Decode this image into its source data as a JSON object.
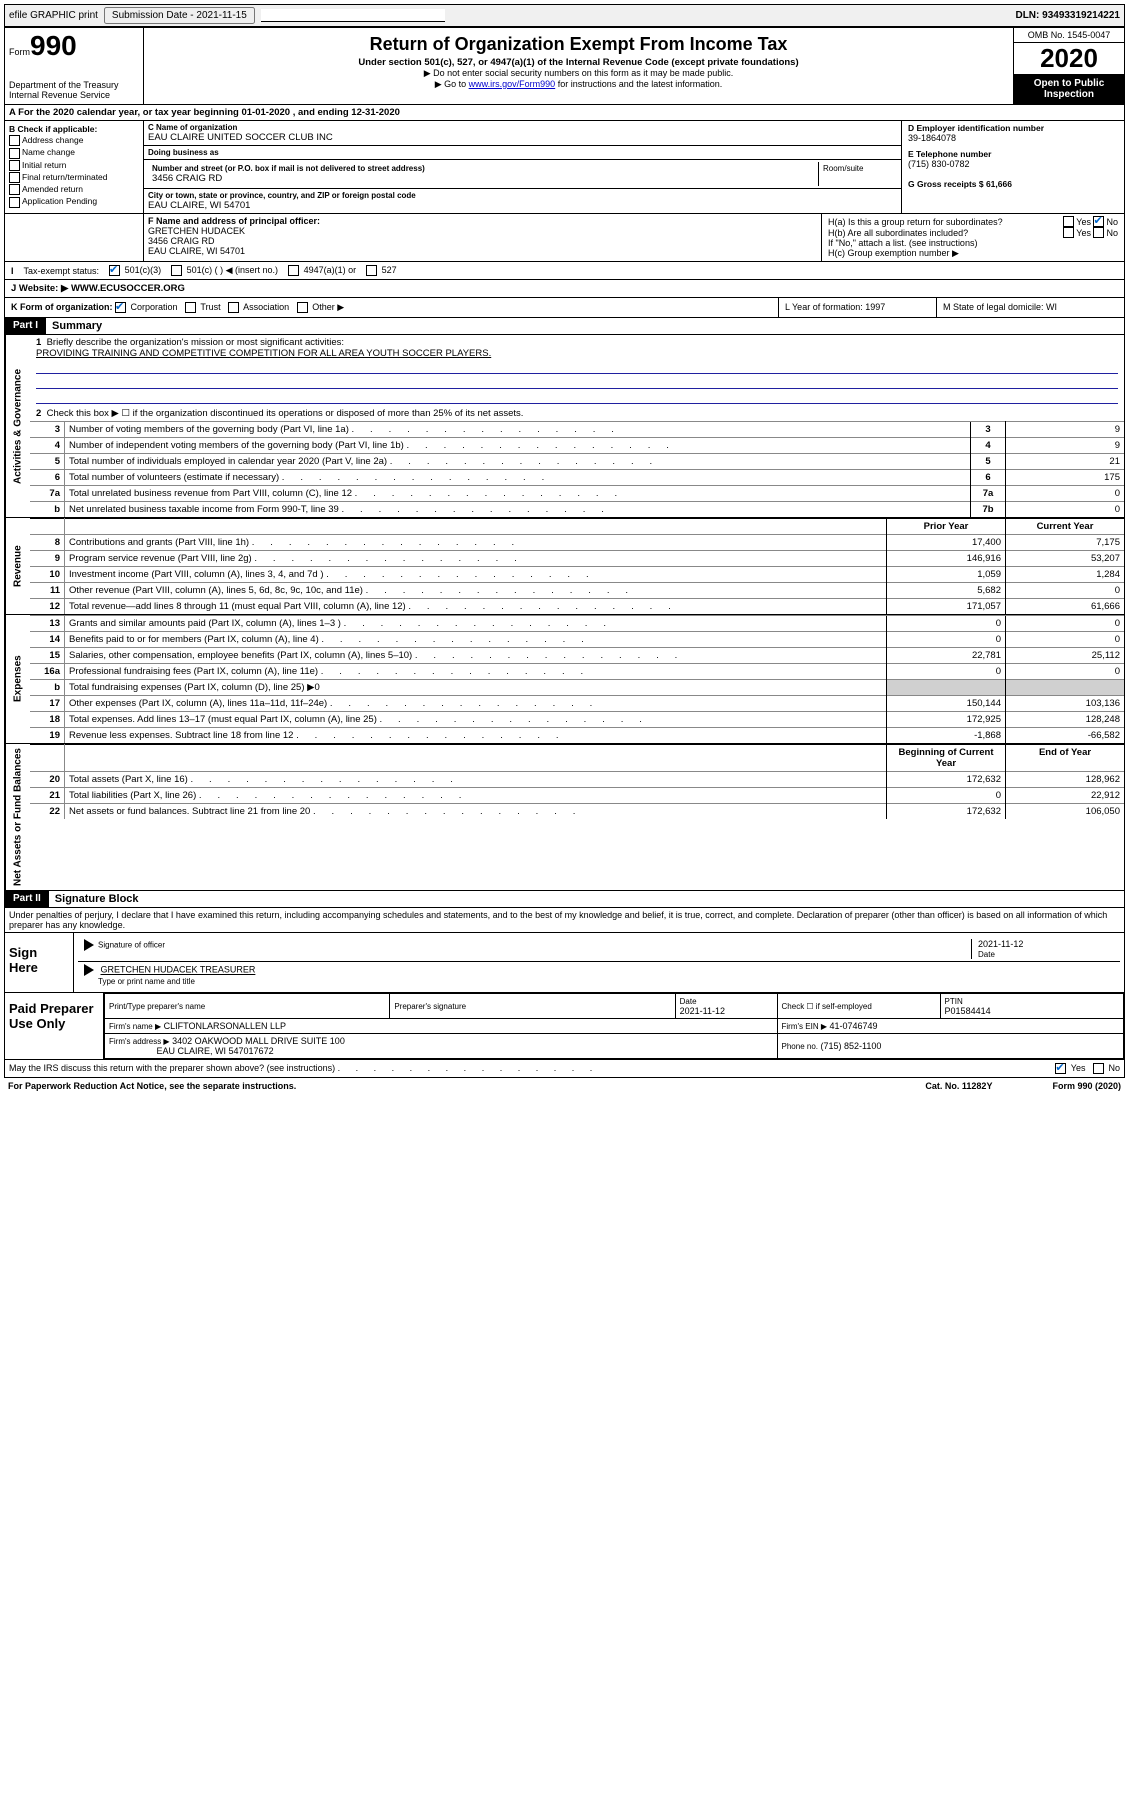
{
  "top": {
    "efile": "efile GRAPHIC print",
    "submission_label": "Submission Date - 2021-11-15",
    "dln": "DLN: 93493319214221"
  },
  "header": {
    "form_word": "Form",
    "form_num": "990",
    "dept1": "Department of the Treasury",
    "dept2": "Internal Revenue Service",
    "title": "Return of Organization Exempt From Income Tax",
    "sub": "Under section 501(c), 527, or 4947(a)(1) of the Internal Revenue Code (except private foundations)",
    "instr1": "▶ Do not enter social security numbers on this form as it may be made public.",
    "instr2_pre": "▶ Go to ",
    "instr2_link": "www.irs.gov/Form990",
    "instr2_post": " for instructions and the latest information.",
    "omb": "OMB No. 1545-0047",
    "year": "2020",
    "open": "Open to Public Inspection"
  },
  "rowA": "A   For the 2020 calendar year, or tax year beginning 01-01-2020   , and ending 12-31-2020",
  "colB": {
    "head": "B Check if applicable:",
    "items": [
      "Address change",
      "Name change",
      "Initial return",
      "Final return/terminated",
      "Amended return",
      "Application Pending"
    ]
  },
  "colC": {
    "name_lbl": "C Name of organization",
    "name": "EAU CLAIRE UNITED SOCCER CLUB INC",
    "dba_lbl": "Doing business as",
    "dba": "",
    "addr_lbl": "Number and street (or P.O. box if mail is not delivered to street address)",
    "room_lbl": "Room/suite",
    "addr": "3456 CRAIG RD",
    "city_lbl": "City or town, state or province, country, and ZIP or foreign postal code",
    "city": "EAU CLAIRE, WI  54701"
  },
  "colD": {
    "ein_lbl": "D Employer identification number",
    "ein": "39-1864078",
    "tel_lbl": "E Telephone number",
    "tel": "(715) 830-0782",
    "gross_lbl": "G Gross receipts $ 61,666"
  },
  "rowF": {
    "lbl": "F  Name and address of principal officer:",
    "name": "GRETCHEN HUDACEK",
    "addr1": "3456 CRAIG RD",
    "addr2": "EAU CLAIRE, WI  54701"
  },
  "rowH": {
    "a": "H(a)  Is this a group return for subordinates?",
    "b": "H(b)  Are all subordinates included?",
    "bnote": "If \"No,\" attach a list. (see instructions)",
    "c": "H(c)  Group exemption number ▶",
    "yes": "Yes",
    "no": "No"
  },
  "rowI": {
    "lbl": "Tax-exempt status:",
    "o1": "501(c)(3)",
    "o2": "501(c) (  ) ◀ (insert no.)",
    "o3": "4947(a)(1) or",
    "o4": "527"
  },
  "rowJ": {
    "lbl": "J   Website: ▶",
    "val": "WWW.ECUSOCCER.ORG"
  },
  "rowK": {
    "lbl": "K Form of organization:",
    "o1": "Corporation",
    "o2": "Trust",
    "o3": "Association",
    "o4": "Other ▶",
    "L": "L Year of formation: 1997",
    "M": "M State of legal domicile: WI"
  },
  "part1": {
    "num": "Part I",
    "title": "Summary"
  },
  "ag": {
    "side": "Activities & Governance",
    "l1": "Briefly describe the organization's mission or most significant activities:",
    "mission": "PROVIDING TRAINING AND COMPETITIVE COMPETITION FOR ALL AREA YOUTH SOCCER PLAYERS.",
    "l2": "Check this box ▶ ☐  if the organization discontinued its operations or disposed of more than 25% of its net assets.",
    "rows": [
      {
        "n": "3",
        "t": "Number of voting members of the governing body (Part VI, line 1a)",
        "k": "3",
        "v": "9"
      },
      {
        "n": "4",
        "t": "Number of independent voting members of the governing body (Part VI, line 1b)",
        "k": "4",
        "v": "9"
      },
      {
        "n": "5",
        "t": "Total number of individuals employed in calendar year 2020 (Part V, line 2a)",
        "k": "5",
        "v": "21"
      },
      {
        "n": "6",
        "t": "Total number of volunteers (estimate if necessary)",
        "k": "6",
        "v": "175"
      },
      {
        "n": "7a",
        "t": "Total unrelated business revenue from Part VIII, column (C), line 12",
        "k": "7a",
        "v": "0"
      },
      {
        "n": "b",
        "t": "Net unrelated business taxable income from Form 990-T, line 39",
        "k": "7b",
        "v": "0"
      }
    ]
  },
  "rev": {
    "side": "Revenue",
    "head_prior": "Prior Year",
    "head_curr": "Current Year",
    "rows": [
      {
        "n": "8",
        "t": "Contributions and grants (Part VIII, line 1h)",
        "p": "17,400",
        "c": "7,175"
      },
      {
        "n": "9",
        "t": "Program service revenue (Part VIII, line 2g)",
        "p": "146,916",
        "c": "53,207"
      },
      {
        "n": "10",
        "t": "Investment income (Part VIII, column (A), lines 3, 4, and 7d )",
        "p": "1,059",
        "c": "1,284"
      },
      {
        "n": "11",
        "t": "Other revenue (Part VIII, column (A), lines 5, 6d, 8c, 9c, 10c, and 11e)",
        "p": "5,682",
        "c": "0"
      },
      {
        "n": "12",
        "t": "Total revenue—add lines 8 through 11 (must equal Part VIII, column (A), line 12)",
        "p": "171,057",
        "c": "61,666"
      }
    ]
  },
  "exp": {
    "side": "Expenses",
    "rows": [
      {
        "n": "13",
        "t": "Grants and similar amounts paid (Part IX, column (A), lines 1–3 )",
        "p": "0",
        "c": "0"
      },
      {
        "n": "14",
        "t": "Benefits paid to or for members (Part IX, column (A), line 4)",
        "p": "0",
        "c": "0"
      },
      {
        "n": "15",
        "t": "Salaries, other compensation, employee benefits (Part IX, column (A), lines 5–10)",
        "p": "22,781",
        "c": "25,112"
      },
      {
        "n": "16a",
        "t": "Professional fundraising fees (Part IX, column (A), line 11e)",
        "p": "0",
        "c": "0"
      },
      {
        "n": "b",
        "t": "Total fundraising expenses (Part IX, column (D), line 25) ▶0",
        "p": "",
        "c": "",
        "shade": true
      },
      {
        "n": "17",
        "t": "Other expenses (Part IX, column (A), lines 11a–11d, 11f–24e)",
        "p": "150,144",
        "c": "103,136"
      },
      {
        "n": "18",
        "t": "Total expenses. Add lines 13–17 (must equal Part IX, column (A), line 25)",
        "p": "172,925",
        "c": "128,248"
      },
      {
        "n": "19",
        "t": "Revenue less expenses. Subtract line 18 from line 12",
        "p": "-1,868",
        "c": "-66,582"
      }
    ]
  },
  "na": {
    "side": "Net Assets or Fund Balances",
    "head_prior": "Beginning of Current Year",
    "head_curr": "End of Year",
    "rows": [
      {
        "n": "20",
        "t": "Total assets (Part X, line 16)",
        "p": "172,632",
        "c": "128,962"
      },
      {
        "n": "21",
        "t": "Total liabilities (Part X, line 26)",
        "p": "0",
        "c": "22,912"
      },
      {
        "n": "22",
        "t": "Net assets or fund balances. Subtract line 21 from line 20",
        "p": "172,632",
        "c": "106,050"
      }
    ]
  },
  "part2": {
    "num": "Part II",
    "title": "Signature Block"
  },
  "sig": {
    "text": "Under penalties of perjury, I declare that I have examined this return, including accompanying schedules and statements, and to the best of my knowledge and belief, it is true, correct, and complete. Declaration of preparer (other than officer) is based on all information of which preparer has any knowledge.",
    "sign_here": "Sign Here",
    "sig_officer": "Signature of officer",
    "date_lbl": "Date",
    "date": "2021-11-12",
    "name_title": "GRETCHEN HUDACEK  TREASURER",
    "type_lbl": "Type or print name and title"
  },
  "prep": {
    "title": "Paid Preparer Use Only",
    "h1": "Print/Type preparer's name",
    "h2": "Preparer's signature",
    "h3": "Date",
    "h3v": "2021-11-12",
    "h4": "Check ☐ if self-employed",
    "h5": "PTIN",
    "h5v": "P01584414",
    "firm_lbl": "Firm's name   ▶",
    "firm": "CLIFTONLARSONALLEN LLP",
    "fein_lbl": "Firm's EIN ▶",
    "fein": "41-0746749",
    "addr_lbl": "Firm's address ▶",
    "addr1": "3402 OAKWOOD MALL DRIVE SUITE 100",
    "addr2": "EAU CLAIRE, WI  547017672",
    "phone_lbl": "Phone no.",
    "phone": "(715) 852-1100"
  },
  "discuss": {
    "q": "May the IRS discuss this return with the preparer shown above? (see instructions)",
    "yes": "Yes",
    "no": "No"
  },
  "footer": {
    "l": "For Paperwork Reduction Act Notice, see the separate instructions.",
    "m": "Cat. No. 11282Y",
    "r": "Form 990 (2020)"
  }
}
